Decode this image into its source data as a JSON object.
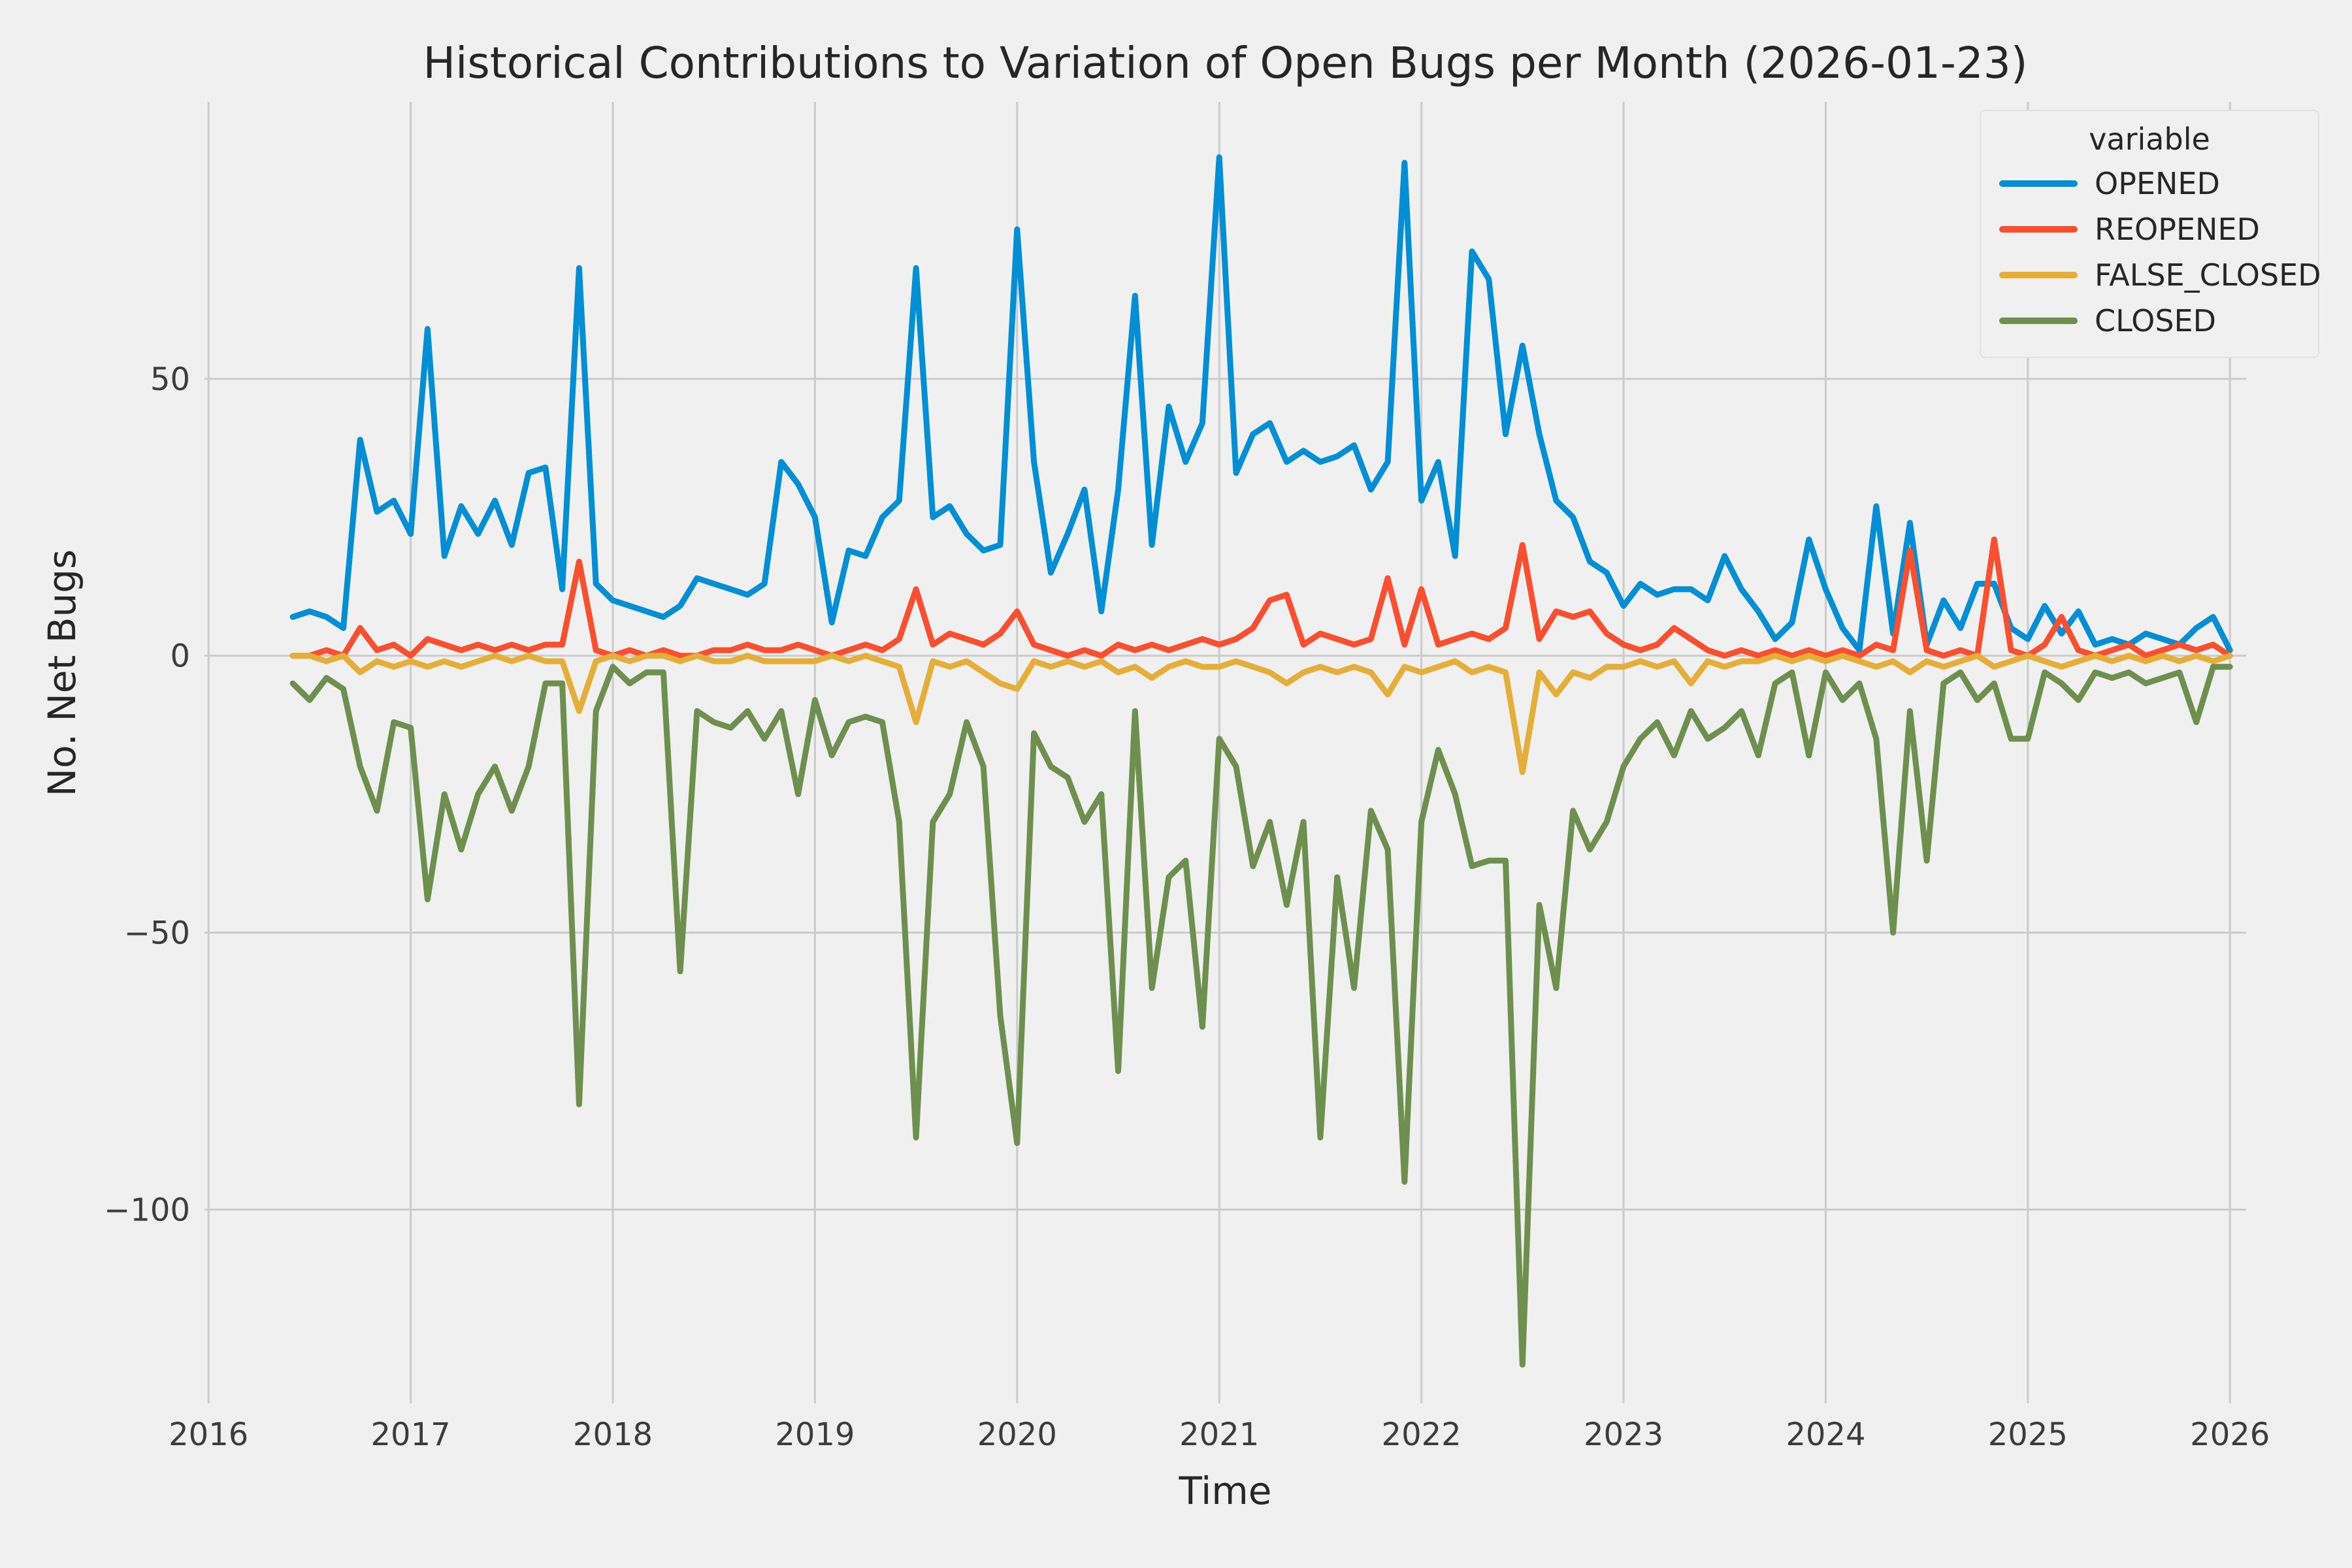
{
  "figure": {
    "background_color": "#f0f0f0",
    "grid_color": "#cbcbcb",
    "text_color": "#262626",
    "tick_color": "#3c3c3c"
  },
  "chart_data": {
    "type": "line",
    "title": "Historical Contributions to Variation of Open Bugs per Month (2026-01-23)",
    "xlabel": "Time",
    "ylabel": "No. Net Bugs",
    "grid": true,
    "legend": {
      "title": "variable",
      "position": "upper right"
    },
    "xlim": [
      2015.98,
      2026.08
    ],
    "ylim": [
      -135,
      100
    ],
    "x_ticks": [
      2016,
      2017,
      2018,
      2019,
      2020,
      2021,
      2022,
      2023,
      2024,
      2025,
      2026
    ],
    "x_tick_labels": [
      "2016",
      "2017",
      "2018",
      "2019",
      "2020",
      "2021",
      "2022",
      "2023",
      "2024",
      "2025",
      "2026"
    ],
    "y_ticks": [
      50,
      0,
      -50,
      -100
    ],
    "y_tick_labels": [
      "50",
      "0",
      "−50",
      "−100"
    ],
    "months": [
      "2016-06",
      "2016-07",
      "2016-08",
      "2016-09",
      "2016-10",
      "2016-11",
      "2016-12",
      "2017-01",
      "2017-02",
      "2017-03",
      "2017-04",
      "2017-05",
      "2017-06",
      "2017-07",
      "2017-08",
      "2017-09",
      "2017-10",
      "2017-11",
      "2017-12",
      "2018-01",
      "2018-02",
      "2018-03",
      "2018-04",
      "2018-05",
      "2018-06",
      "2018-07",
      "2018-08",
      "2018-09",
      "2018-10",
      "2018-11",
      "2018-12",
      "2019-01",
      "2019-02",
      "2019-03",
      "2019-04",
      "2019-05",
      "2019-06",
      "2019-07",
      "2019-08",
      "2019-09",
      "2019-10",
      "2019-11",
      "2019-12",
      "2020-01",
      "2020-02",
      "2020-03",
      "2020-04",
      "2020-05",
      "2020-06",
      "2020-07",
      "2020-08",
      "2020-09",
      "2020-10",
      "2020-11",
      "2020-12",
      "2021-01",
      "2021-02",
      "2021-03",
      "2021-04",
      "2021-05",
      "2021-06",
      "2021-07",
      "2021-08",
      "2021-09",
      "2021-10",
      "2021-11",
      "2021-12",
      "2022-01",
      "2022-02",
      "2022-03",
      "2022-04",
      "2022-05",
      "2022-06",
      "2022-07",
      "2022-08",
      "2022-09",
      "2022-10",
      "2022-11",
      "2022-12",
      "2023-01",
      "2023-02",
      "2023-03",
      "2023-04",
      "2023-05",
      "2023-06",
      "2023-07",
      "2023-08",
      "2023-09",
      "2023-10",
      "2023-11",
      "2023-12",
      "2024-01",
      "2024-02",
      "2024-03",
      "2024-04",
      "2024-05",
      "2024-06",
      "2024-07",
      "2024-08",
      "2024-09",
      "2024-10",
      "2024-11",
      "2024-12",
      "2025-01",
      "2025-02",
      "2025-03",
      "2025-04",
      "2025-05",
      "2025-06",
      "2025-07",
      "2025-08",
      "2025-09",
      "2025-10",
      "2025-11",
      "2025-12",
      "2026-01"
    ],
    "series": [
      {
        "name": "OPENED",
        "color": "#008fd5",
        "values": [
          7,
          8,
          7,
          5,
          39,
          26,
          28,
          22,
          59,
          18,
          27,
          22,
          28,
          20,
          33,
          34,
          12,
          70,
          13,
          10,
          9,
          8,
          7,
          9,
          14,
          13,
          12,
          11,
          13,
          35,
          31,
          25,
          6,
          19,
          18,
          25,
          28,
          70,
          25,
          27,
          22,
          19,
          20,
          77,
          35,
          15,
          22,
          30,
          8,
          30,
          65,
          20,
          45,
          35,
          42,
          90,
          33,
          40,
          42,
          35,
          37,
          35,
          36,
          38,
          30,
          35,
          89,
          28,
          35,
          18,
          73,
          68,
          40,
          56,
          40,
          28,
          25,
          17,
          15,
          9,
          13,
          11,
          12,
          12,
          10,
          18,
          12,
          8,
          3,
          6,
          21,
          12,
          5,
          1,
          27,
          4,
          24,
          2,
          10,
          5,
          13,
          13,
          5,
          3,
          9,
          4,
          8,
          2,
          3,
          2,
          4,
          3,
          2,
          5,
          7,
          1
        ]
      },
      {
        "name": "REOPENED",
        "color": "#fc4f30",
        "values": [
          0,
          0,
          1,
          0,
          5,
          1,
          2,
          0,
          3,
          2,
          1,
          2,
          1,
          2,
          1,
          2,
          2,
          17,
          1,
          0,
          1,
          0,
          1,
          0,
          0,
          1,
          1,
          2,
          1,
          1,
          2,
          1,
          0,
          1,
          2,
          1,
          3,
          12,
          2,
          4,
          3,
          2,
          4,
          8,
          2,
          1,
          0,
          1,
          0,
          2,
          1,
          2,
          1,
          2,
          3,
          2,
          3,
          5,
          10,
          11,
          2,
          4,
          3,
          2,
          3,
          14,
          2,
          12,
          2,
          3,
          4,
          3,
          5,
          20,
          3,
          8,
          7,
          8,
          4,
          2,
          1,
          2,
          5,
          3,
          1,
          0,
          1,
          0,
          1,
          0,
          1,
          0,
          1,
          0,
          2,
          1,
          19,
          1,
          0,
          1,
          0,
          21,
          1,
          0,
          2,
          7,
          1,
          0,
          1,
          2,
          0,
          1,
          2,
          1,
          2,
          0
        ]
      },
      {
        "name": "FALSE_CLOSED",
        "color": "#e5ae38",
        "values": [
          0,
          0,
          -1,
          0,
          -3,
          -1,
          -2,
          -1,
          -2,
          -1,
          -2,
          -1,
          0,
          -1,
          0,
          -1,
          -1,
          -10,
          -1,
          0,
          -1,
          0,
          0,
          -1,
          0,
          -1,
          -1,
          0,
          -1,
          -1,
          -1,
          -1,
          0,
          -1,
          0,
          -1,
          -2,
          -12,
          -1,
          -2,
          -1,
          -3,
          -5,
          -6,
          -1,
          -2,
          -1,
          -2,
          -1,
          -3,
          -2,
          -4,
          -2,
          -1,
          -2,
          -2,
          -1,
          -2,
          -3,
          -5,
          -3,
          -2,
          -3,
          -2,
          -3,
          -7,
          -2,
          -3,
          -2,
          -1,
          -3,
          -2,
          -3,
          -21,
          -3,
          -7,
          -3,
          -4,
          -2,
          -2,
          -1,
          -2,
          -1,
          -5,
          -1,
          -2,
          -1,
          -1,
          0,
          -1,
          0,
          -1,
          0,
          -1,
          -2,
          -1,
          -3,
          -1,
          -2,
          -1,
          0,
          -2,
          -1,
          0,
          -1,
          -2,
          -1,
          0,
          -1,
          0,
          -1,
          0,
          -1,
          0,
          -1,
          0
        ]
      },
      {
        "name": "CLOSED",
        "color": "#6d904f",
        "values": [
          -5,
          -8,
          -4,
          -6,
          -20,
          -28,
          -12,
          -13,
          -44,
          -25,
          -35,
          -25,
          -20,
          -28,
          -20,
          -5,
          -5,
          -81,
          -10,
          -2,
          -5,
          -3,
          -3,
          -57,
          -10,
          -12,
          -13,
          -10,
          -15,
          -10,
          -25,
          -8,
          -18,
          -12,
          -11,
          -12,
          -30,
          -87,
          -30,
          -25,
          -12,
          -20,
          -65,
          -88,
          -14,
          -20,
          -22,
          -30,
          -25,
          -75,
          -10,
          -60,
          -40,
          -37,
          -67,
          -15,
          -20,
          -38,
          -30,
          -45,
          -30,
          -87,
          -40,
          -60,
          -28,
          -35,
          -95,
          -30,
          -17,
          -25,
          -38,
          -37,
          -37,
          -128,
          -45,
          -60,
          -28,
          -35,
          -30,
          -20,
          -15,
          -12,
          -18,
          -10,
          -15,
          -13,
          -10,
          -18,
          -5,
          -3,
          -18,
          -3,
          -8,
          -5,
          -15,
          -50,
          -10,
          -37,
          -5,
          -3,
          -8,
          -5,
          -15,
          -15,
          -3,
          -5,
          -8,
          -3,
          -4,
          -3,
          -5,
          -4,
          -3,
          -12,
          -2,
          -2
        ]
      }
    ]
  }
}
